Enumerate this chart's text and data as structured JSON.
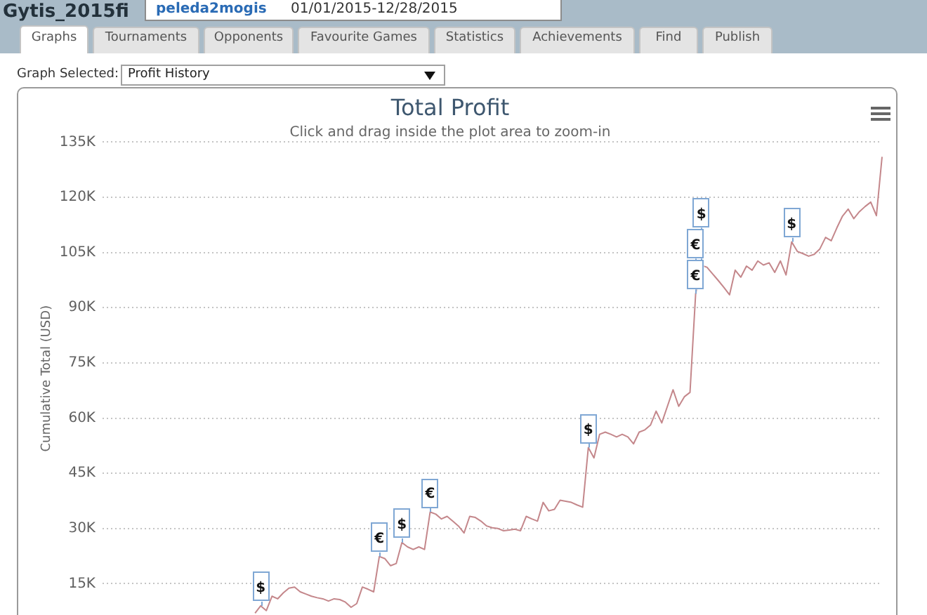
{
  "chart_data": {
    "type": "line",
    "title": "Total Profit",
    "subtitle": "Click and drag inside the plot area to zoom-in",
    "ylabel": "Cumulative Total (USD)",
    "categories": [
      null,
      null,
      null,
      null,
      null,
      null,
      null,
      null,
      null,
      null,
      null,
      null,
      null,
      null,
      null,
      null,
      null,
      null,
      null,
      null,
      null,
      null,
      null,
      null,
      null,
      null,
      null,
      null,
      null,
      null,
      null,
      null,
      null,
      null,
      null,
      null,
      null,
      null,
      null,
      null,
      null,
      null,
      null,
      null,
      null,
      null,
      null,
      null,
      null,
      null,
      null,
      null,
      null,
      null,
      null,
      null,
      null,
      null,
      null,
      null,
      null,
      null,
      null,
      null,
      null,
      null,
      null,
      null,
      null,
      null,
      null,
      null,
      null,
      null,
      null,
      null,
      null,
      null,
      null,
      null,
      null,
      null,
      null,
      null,
      null,
      null,
      null,
      null,
      null,
      null,
      null,
      null,
      null,
      null,
      null,
      null,
      null,
      null,
      null,
      null,
      null,
      null,
      null,
      null,
      null,
      null,
      null,
      null,
      null,
      null,
      null,
      null,
      null,
      null,
      null,
      null,
      null,
      null,
      null,
      null,
      null,
      null,
      null,
      null,
      null,
      null,
      null,
      null,
      null,
      null,
      null,
      null,
      null,
      null,
      null,
      null,
      null,
      null,
      null
    ],
    "values": [
      null,
      null,
      null,
      null,
      null,
      null,
      null,
      null,
      null,
      null,
      null,
      null,
      null,
      null,
      null,
      null,
      null,
      null,
      null,
      null,
      null,
      null,
      null,
      null,
      null,
      null,
      null,
      7000,
      9000,
      7700,
      11600,
      10900,
      12500,
      13800,
      14100,
      12800,
      12200,
      11600,
      11200,
      10900,
      10300,
      10900,
      10700,
      10000,
      8600,
      9600,
      14100,
      13500,
      12800,
      22400,
      21800,
      19900,
      20500,
      26200,
      25000,
      24300,
      25000,
      24300,
      34500,
      33900,
      32600,
      33300,
      32000,
      30700,
      28800,
      33300,
      33000,
      32000,
      30700,
      30200,
      30000,
      29400,
      29600,
      29800,
      29400,
      33300,
      32600,
      32000,
      37100,
      34800,
      35200,
      37700,
      37400,
      37100,
      36400,
      35800,
      52000,
      49200,
      55600,
      56200,
      55600,
      54900,
      55600,
      54900,
      53000,
      56200,
      56800,
      58100,
      61900,
      58700,
      63200,
      67700,
      63200,
      65800,
      67000,
      93800,
      101500,
      101000,
      99200,
      97400,
      95500,
      93500,
      100200,
      98300,
      101300,
      100200,
      102700,
      101600,
      102200,
      99600,
      102700,
      98900,
      107900,
      105300,
      104700,
      104000,
      104500,
      106000,
      109100,
      108200,
      111700,
      114900,
      116800,
      114200,
      116100,
      117500,
      118700,
      115000,
      131000
    ],
    "color": "#c4878b",
    "marker": "none",
    "grid": "y",
    "tick_labels": "y",
    "ylim": [
      6500,
      135000
    ],
    "yticks": [
      {
        "value": 15000,
        "label": "15K"
      },
      {
        "value": 30000,
        "label": "30K"
      },
      {
        "value": 45000,
        "label": "45K"
      },
      {
        "value": 60000,
        "label": "60K"
      },
      {
        "value": 75000,
        "label": "75K"
      },
      {
        "value": 90000,
        "label": "90K"
      },
      {
        "value": 105000,
        "label": "105K"
      },
      {
        "value": 120000,
        "label": "120K"
      },
      {
        "value": 135000,
        "label": "135K"
      }
    ],
    "annotations": [
      "Gytis_2015fi",
      "peleda2mogis",
      "01/01/2015-12/28/2015",
      "Graphs",
      "Tournaments",
      "Opponents",
      "Favourite Games",
      "Statistics",
      "Achievements",
      "Find",
      "Publish",
      "Graph Selected:",
      "Profit History",
      {
        "text": "$",
        "y": 9000
      },
      {
        "text": "€",
        "y": 22400
      },
      {
        "text": "$",
        "y": 26200
      },
      {
        "text": "€",
        "y": 34500
      },
      {
        "text": "$",
        "y": 52000
      },
      {
        "text": "€",
        "y": 93800
      },
      {
        "text": "€",
        "y": 93800
      },
      {
        "text": "$",
        "y": 101500
      },
      {
        "text": "$",
        "y": 107900
      }
    ]
  }
}
